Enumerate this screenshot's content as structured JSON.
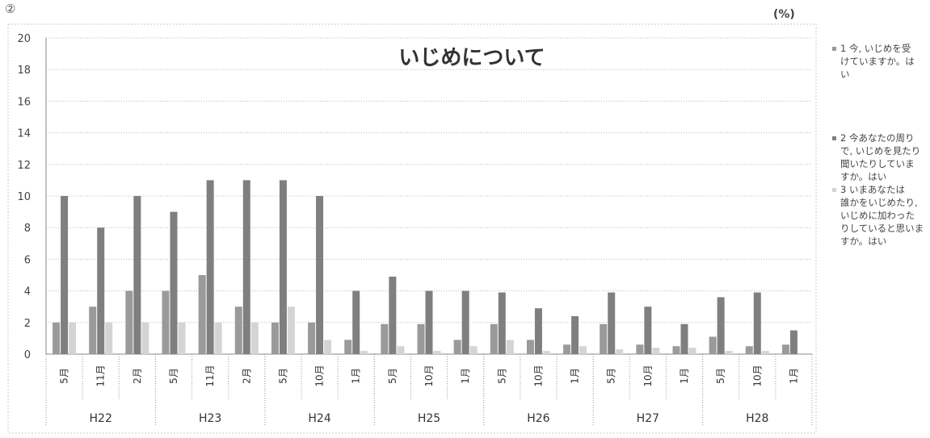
{
  "figure_number": "②",
  "unit_label": "(%)",
  "colors": {
    "series1": "#9a9a9a",
    "series2": "#7f7f7f",
    "series3": "#d4d4d4",
    "grid": "#b8b8b8",
    "axis": "#888888"
  },
  "chart_data": {
    "type": "bar",
    "title": "いじめについて",
    "ylim": [
      0,
      20
    ],
    "y_ticks": [
      0,
      2,
      4,
      6,
      8,
      10,
      12,
      14,
      16,
      18,
      20
    ],
    "grid": true,
    "legend_position": "right",
    "categories": [
      "5月",
      "11月",
      "2月",
      "5月",
      "11月",
      "2月",
      "5月",
      "10月",
      "1月",
      "5月",
      "10月",
      "1月",
      "5月",
      "10月",
      "1月",
      "5月",
      "10月",
      "1月",
      "5月",
      "10月",
      "1月"
    ],
    "groups": [
      {
        "label": "H22",
        "span": 3
      },
      {
        "label": "H23",
        "span": 3
      },
      {
        "label": "H24",
        "span": 3
      },
      {
        "label": "H25",
        "span": 3
      },
      {
        "label": "H26",
        "span": 3
      },
      {
        "label": "H27",
        "span": 3
      },
      {
        "label": "H28",
        "span": 3
      }
    ],
    "series": [
      {
        "name": "1 今, いじめを受けていますか。はい",
        "legend_lines": [
          "1 今, いじめを受",
          "けていますか。は",
          "い"
        ],
        "values": [
          2,
          3,
          4,
          4,
          5,
          3,
          2,
          2,
          0.9,
          1.9,
          1.9,
          0.9,
          1.9,
          0.9,
          0.6,
          1.9,
          0.6,
          0.5,
          1.1,
          0.5,
          0.6
        ]
      },
      {
        "name": "2 今あなたの周りで, いじめを見たり聞いたりしていますか。はい",
        "legend_lines": [
          "2 今あなたの周り",
          "で, いじめを見たり",
          "聞いたりしていま",
          "すか。はい"
        ],
        "values": [
          10,
          8,
          10,
          9,
          11,
          11,
          11,
          10,
          4,
          4.9,
          4,
          4,
          3.9,
          2.9,
          2.4,
          3.9,
          3,
          1.9,
          3.6,
          3.9,
          1.5
        ]
      },
      {
        "name": "3 いまあなたは誰かをいじめたり, いじめに加わったりしていると思いますか。はい",
        "legend_lines": [
          "3 いまあなたは",
          "誰かをいじめたり,",
          "いじめに加わった",
          "りしていると思いま",
          "すか。はい"
        ],
        "values": [
          2,
          2,
          2,
          2,
          2,
          2,
          3,
          0.9,
          0.2,
          0.5,
          0.2,
          0.5,
          0.9,
          0.2,
          0.5,
          0.3,
          0.4,
          0.4,
          0.2,
          0.2,
          0
        ]
      }
    ]
  }
}
